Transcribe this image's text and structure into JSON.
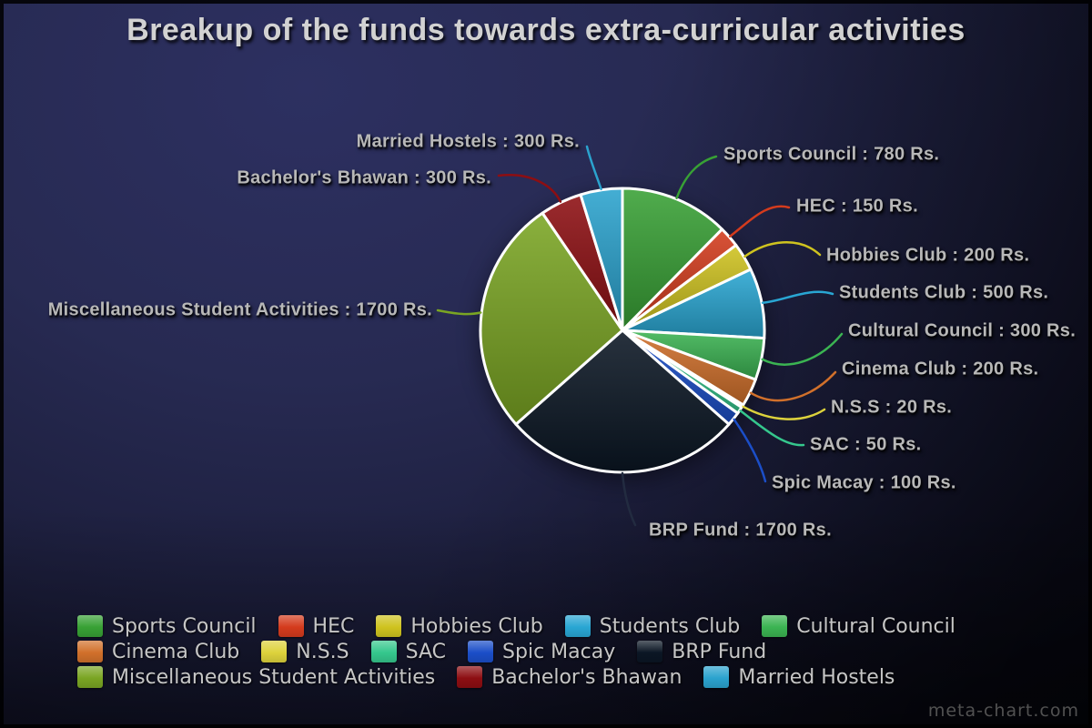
{
  "title": "Breakup of the funds towards extra-curricular activities",
  "watermark": "meta-chart.com",
  "chart_data": {
    "type": "pie",
    "title": "Breakup of the funds towards extra-curricular activities",
    "unit": "Rs.",
    "label_format": "{label} : {value} Rs.",
    "start_angle_deg": 0,
    "direction": "clockwise",
    "legend_position": "bottom",
    "series": [
      {
        "label": "Sports Council",
        "value": 780,
        "color": "#38a135"
      },
      {
        "label": "HEC",
        "value": 150,
        "color": "#d43b1d"
      },
      {
        "label": "Hobbies Club",
        "value": 200,
        "color": "#cfc31f"
      },
      {
        "label": "Students Club",
        "value": 500,
        "color": "#29a6d3"
      },
      {
        "label": "Cultural Council",
        "value": 300,
        "color": "#3bb452"
      },
      {
        "label": "Cinema Club",
        "value": 200,
        "color": "#d1702b"
      },
      {
        "label": "N.S.S",
        "value": 20,
        "color": "#ddd23c"
      },
      {
        "label": "SAC",
        "value": 50,
        "color": "#35c78d"
      },
      {
        "label": "Spic Macay",
        "value": 100,
        "color": "#1b4ec8"
      },
      {
        "label": "BRP Fund",
        "value": 1700,
        "color": "#0b1624"
      },
      {
        "label": "Miscellaneous Student Activities",
        "value": 1700,
        "color": "#7aa523"
      },
      {
        "label": "Bachelor's Bhawan",
        "value": 300,
        "color": "#8d0e12"
      },
      {
        "label": "Married Hostels",
        "value": 300,
        "color": "#2ba3ce"
      }
    ],
    "legend_rows": [
      [
        0,
        1,
        2,
        3,
        4
      ],
      [
        5,
        6,
        7,
        8,
        9
      ],
      [
        10,
        11,
        12
      ]
    ]
  }
}
